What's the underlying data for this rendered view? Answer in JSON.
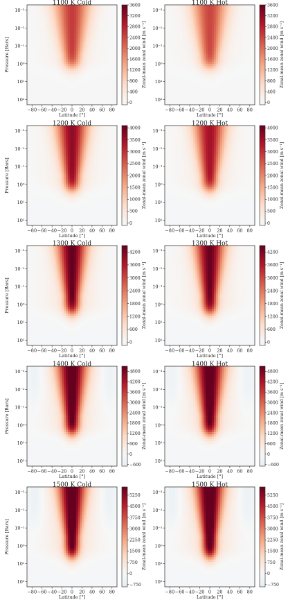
{
  "figure": {
    "colorbar_label": "Zonal-mean zonal wind [m s⁻¹]",
    "ylabel": "Pressure [Bars]",
    "xlabel": "Latitude [°]"
  },
  "chart_data": [
    {
      "type": "heatmap",
      "title": "1100 K Cold",
      "xlabel": "Latitude [°]",
      "ylabel": "Pressure [Bars]",
      "colorbar_label": "Zonal-mean zonal wind [m s⁻¹]",
      "x_ticks": [
        "−80",
        "−60",
        "−40",
        "−20",
        "0",
        "20",
        "40",
        "60",
        "80"
      ],
      "x_values": [
        -80,
        -60,
        -40,
        -20,
        0,
        20,
        40,
        60,
        80
      ],
      "y_ticks": [
        "10⁻³",
        "10⁻²",
        "10⁻¹",
        "10⁰",
        "10¹",
        "10²"
      ],
      "y_values": [
        0.001,
        0.01,
        0.1,
        1,
        10,
        100
      ],
      "ylim": [
        200,
        0.0005
      ],
      "yscale": "log",
      "colorbar_ticks": [
        "0",
        "400",
        "800",
        "1200",
        "1600",
        "2000",
        "2400",
        "2800",
        "3200",
        "3600"
      ],
      "colorbar_values": [
        0,
        400,
        800,
        1200,
        1600,
        2000,
        2400,
        2800,
        3200,
        3600
      ],
      "vmin": -80,
      "vmax": 3600,
      "jet_peak": 2200,
      "jet_center_latitude": 0,
      "jet_halfwidth_deg": 18,
      "jet_base_pressure": 1.5
    },
    {
      "type": "heatmap",
      "title": "1100 K Hot",
      "xlabel": "Latitude [°]",
      "ylabel": "",
      "colorbar_label": "Zonal-mean zonal wind [m s⁻¹]",
      "x_ticks": [
        "−80",
        "−60",
        "−40",
        "−20",
        "0",
        "20",
        "40",
        "60",
        "80"
      ],
      "x_values": [
        -80,
        -60,
        -40,
        -20,
        0,
        20,
        40,
        60,
        80
      ],
      "y_ticks": [
        "10⁻³",
        "10⁻²",
        "10⁻¹",
        "10⁰",
        "10¹",
        "10²"
      ],
      "y_values": [
        0.001,
        0.01,
        0.1,
        1,
        10,
        100
      ],
      "ylim": [
        200,
        0.0005
      ],
      "yscale": "log",
      "colorbar_ticks": [
        "0",
        "400",
        "800",
        "1200",
        "1600",
        "2000",
        "2400",
        "2800",
        "3200",
        "3600"
      ],
      "colorbar_values": [
        0,
        400,
        800,
        1200,
        1600,
        2000,
        2400,
        2800,
        3200,
        3600
      ],
      "vmin": -80,
      "vmax": 3600,
      "jet_peak": 2100,
      "jet_center_latitude": 0,
      "jet_halfwidth_deg": 18,
      "jet_base_pressure": 1.5
    },
    {
      "type": "heatmap",
      "title": "1200 K Cold",
      "xlabel": "Latitude [°]",
      "ylabel": "Pressure [Bars]",
      "colorbar_label": "Zonal-mean zonal wind [m s⁻¹]",
      "x_ticks": [
        "−80",
        "−60",
        "−40",
        "−20",
        "0",
        "20",
        "40",
        "60",
        "80"
      ],
      "x_values": [
        -80,
        -60,
        -40,
        -20,
        0,
        20,
        40,
        60,
        80
      ],
      "y_ticks": [
        "10⁻³",
        "10⁻²",
        "10⁻¹",
        "10⁰",
        "10¹",
        "10²"
      ],
      "y_values": [
        0.001,
        0.01,
        0.1,
        1,
        10,
        100
      ],
      "ylim": [
        200,
        0.0005
      ],
      "yscale": "log",
      "colorbar_ticks": [
        "0",
        "500",
        "1000",
        "1500",
        "2000",
        "2500",
        "3000",
        "3500",
        "4000"
      ],
      "colorbar_values": [
        0,
        500,
        1000,
        1500,
        2000,
        2500,
        3000,
        3500,
        4000
      ],
      "vmin": -100,
      "vmax": 4100,
      "jet_peak": 3200,
      "jet_center_latitude": 0,
      "jet_halfwidth_deg": 16,
      "jet_base_pressure": 2
    },
    {
      "type": "heatmap",
      "title": "1200 K Hot",
      "xlabel": "Latitude [°]",
      "ylabel": "",
      "colorbar_label": "Zonal-mean zonal wind [m s⁻¹]",
      "x_ticks": [
        "−80",
        "−60",
        "−40",
        "−20",
        "0",
        "20",
        "40",
        "60",
        "80"
      ],
      "x_values": [
        -80,
        -60,
        -40,
        -20,
        0,
        20,
        40,
        60,
        80
      ],
      "y_ticks": [
        "10⁻³",
        "10⁻²",
        "10⁻¹",
        "10⁰",
        "10¹",
        "10²"
      ],
      "y_values": [
        0.001,
        0.01,
        0.1,
        1,
        10,
        100
      ],
      "ylim": [
        200,
        0.0005
      ],
      "yscale": "log",
      "colorbar_ticks": [
        "0",
        "500",
        "1000",
        "1500",
        "2000",
        "2500",
        "3000",
        "3500",
        "4000"
      ],
      "colorbar_values": [
        0,
        500,
        1000,
        1500,
        2000,
        2500,
        3000,
        3500,
        4000
      ],
      "vmin": -100,
      "vmax": 4100,
      "jet_peak": 3000,
      "jet_center_latitude": 0,
      "jet_halfwidth_deg": 16,
      "jet_base_pressure": 2
    },
    {
      "type": "heatmap",
      "title": "1300 K Cold",
      "xlabel": "Latitude [°]",
      "ylabel": "Pressure [Bars]",
      "colorbar_label": "Zonal-mean zonal wind [m s⁻¹]",
      "x_ticks": [
        "−80",
        "−60",
        "−40",
        "−20",
        "0",
        "20",
        "40",
        "60",
        "80"
      ],
      "x_values": [
        -80,
        -60,
        -40,
        -20,
        0,
        20,
        40,
        60,
        80
      ],
      "y_ticks": [
        "10⁻³",
        "10⁻²",
        "10⁻¹",
        "10⁰",
        "10¹",
        "10²"
      ],
      "y_values": [
        0.001,
        0.01,
        0.1,
        1,
        10,
        100
      ],
      "ylim": [
        200,
        0.0005
      ],
      "yscale": "log",
      "colorbar_ticks": [
        "0",
        "600",
        "1200",
        "1800",
        "2400",
        "3000",
        "3600",
        "4200"
      ],
      "colorbar_values": [
        0,
        600,
        1200,
        1800,
        2400,
        3000,
        3600,
        4200
      ],
      "vmin": -150,
      "vmax": 4500,
      "jet_peak": 4000,
      "jet_center_latitude": 0,
      "jet_halfwidth_deg": 15,
      "jet_base_pressure": 3
    },
    {
      "type": "heatmap",
      "title": "1300 K Hot",
      "xlabel": "Latitude [°]",
      "ylabel": "",
      "colorbar_label": "Zonal-mean zonal wind [m s⁻¹]",
      "x_ticks": [
        "−80",
        "−60",
        "−40",
        "−20",
        "0",
        "20",
        "40",
        "60",
        "80"
      ],
      "x_values": [
        -80,
        -60,
        -40,
        -20,
        0,
        20,
        40,
        60,
        80
      ],
      "y_ticks": [
        "10⁻³",
        "10⁻²",
        "10⁻¹",
        "10⁰",
        "10¹",
        "10²"
      ],
      "y_values": [
        0.001,
        0.01,
        0.1,
        1,
        10,
        100
      ],
      "ylim": [
        200,
        0.0005
      ],
      "yscale": "log",
      "colorbar_ticks": [
        "0",
        "600",
        "1200",
        "1800",
        "2400",
        "3000",
        "3600",
        "4200"
      ],
      "colorbar_values": [
        0,
        600,
        1200,
        1800,
        2400,
        3000,
        3600,
        4200
      ],
      "vmin": -150,
      "vmax": 4500,
      "jet_peak": 3900,
      "jet_center_latitude": 0,
      "jet_halfwidth_deg": 15,
      "jet_base_pressure": 3
    },
    {
      "type": "heatmap",
      "title": "1400 K Cold",
      "xlabel": "Latitude [°]",
      "ylabel": "Pressure [Bars]",
      "colorbar_label": "Zonal-mean zonal wind [m s⁻¹]",
      "x_ticks": [
        "−80",
        "−60",
        "−40",
        "−20",
        "0",
        "20",
        "40",
        "60",
        "80"
      ],
      "x_values": [
        -80,
        -60,
        -40,
        -20,
        0,
        20,
        40,
        60,
        80
      ],
      "y_ticks": [
        "10⁻³",
        "10⁻²",
        "10⁻¹",
        "10⁰",
        "10¹",
        "10²"
      ],
      "y_values": [
        0.001,
        0.01,
        0.1,
        1,
        10,
        100
      ],
      "ylim": [
        200,
        0.0005
      ],
      "yscale": "log",
      "colorbar_ticks": [
        "−600",
        "0",
        "600",
        "1200",
        "1800",
        "2400",
        "3000",
        "3600",
        "4200",
        "4800"
      ],
      "colorbar_values": [
        -600,
        0,
        600,
        1200,
        1800,
        2400,
        3000,
        3600,
        4200,
        4800
      ],
      "vmin": -700,
      "vmax": 5100,
      "jet_peak": 4800,
      "jet_center_latitude": 0,
      "jet_halfwidth_deg": 15,
      "jet_base_pressure": 3,
      "high_latitude_min": -450
    },
    {
      "type": "heatmap",
      "title": "1400 K Hot",
      "xlabel": "Latitude [°]",
      "ylabel": "",
      "colorbar_label": "Zonal-mean zonal wind [m s⁻¹]",
      "x_ticks": [
        "−80",
        "−60",
        "−40",
        "−20",
        "0",
        "20",
        "40",
        "60",
        "80"
      ],
      "x_values": [
        -80,
        -60,
        -40,
        -20,
        0,
        20,
        40,
        60,
        80
      ],
      "y_ticks": [
        "10⁻³",
        "10⁻²",
        "10⁻¹",
        "10⁰",
        "10¹",
        "10²"
      ],
      "y_values": [
        0.001,
        0.01,
        0.1,
        1,
        10,
        100
      ],
      "ylim": [
        200,
        0.0005
      ],
      "yscale": "log",
      "colorbar_ticks": [
        "−600",
        "0",
        "600",
        "1200",
        "1800",
        "2400",
        "3000",
        "3600",
        "4200",
        "4800"
      ],
      "colorbar_values": [
        -600,
        0,
        600,
        1200,
        1800,
        2400,
        3000,
        3600,
        4200,
        4800
      ],
      "vmin": -700,
      "vmax": 5100,
      "jet_peak": 4800,
      "jet_center_latitude": 0,
      "jet_halfwidth_deg": 15,
      "jet_base_pressure": 3,
      "high_latitude_min": -450
    },
    {
      "type": "heatmap",
      "title": "1500 K Cold",
      "xlabel": "Latitude [°]",
      "ylabel": "Pressure [Bars]",
      "colorbar_label": "Zonal-mean zonal wind [m s⁻¹]",
      "x_ticks": [
        "−80",
        "−60",
        "−40",
        "−20",
        "0",
        "20",
        "40",
        "60",
        "80"
      ],
      "x_values": [
        -80,
        -60,
        -40,
        -20,
        0,
        20,
        40,
        60,
        80
      ],
      "y_ticks": [
        "10⁻³",
        "10⁻²",
        "10⁻¹",
        "10⁰",
        "10¹",
        "10²"
      ],
      "y_values": [
        0.001,
        0.01,
        0.1,
        1,
        10,
        100
      ],
      "ylim": [
        200,
        0.0005
      ],
      "yscale": "log",
      "colorbar_ticks": [
        "−750",
        "0",
        "750",
        "1500",
        "2250",
        "3000",
        "3750",
        "4500",
        "5250"
      ],
      "colorbar_values": [
        -750,
        0,
        750,
        1500,
        2250,
        3000,
        3750,
        4500,
        5250
      ],
      "vmin": -900,
      "vmax": 5800,
      "jet_peak": 5600,
      "jet_center_latitude": 0,
      "jet_halfwidth_deg": 14,
      "jet_base_pressure": 4,
      "high_latitude_min": -600
    },
    {
      "type": "heatmap",
      "title": "1500 K Hot",
      "xlabel": "Latitude [°]",
      "ylabel": "",
      "colorbar_label": "Zonal-mean zonal wind [m s⁻¹]",
      "x_ticks": [
        "−80",
        "−60",
        "−40",
        "−20",
        "0",
        "20",
        "40",
        "60",
        "80"
      ],
      "x_values": [
        -80,
        -60,
        -40,
        -20,
        0,
        20,
        40,
        60,
        80
      ],
      "y_ticks": [
        "10⁻³",
        "10⁻²",
        "10⁻¹",
        "10⁰",
        "10¹",
        "10²"
      ],
      "y_values": [
        0.001,
        0.01,
        0.1,
        1,
        10,
        100
      ],
      "ylim": [
        200,
        0.0005
      ],
      "yscale": "log",
      "colorbar_ticks": [
        "−750",
        "0",
        "750",
        "1500",
        "2250",
        "3000",
        "3750",
        "4500",
        "5250"
      ],
      "colorbar_values": [
        -750,
        0,
        750,
        1500,
        2250,
        3000,
        3750,
        4500,
        5250
      ],
      "vmin": -900,
      "vmax": 5800,
      "jet_peak": 5700,
      "jet_center_latitude": 0,
      "jet_halfwidth_deg": 14,
      "jet_base_pressure": 4,
      "high_latitude_min": -600
    }
  ]
}
